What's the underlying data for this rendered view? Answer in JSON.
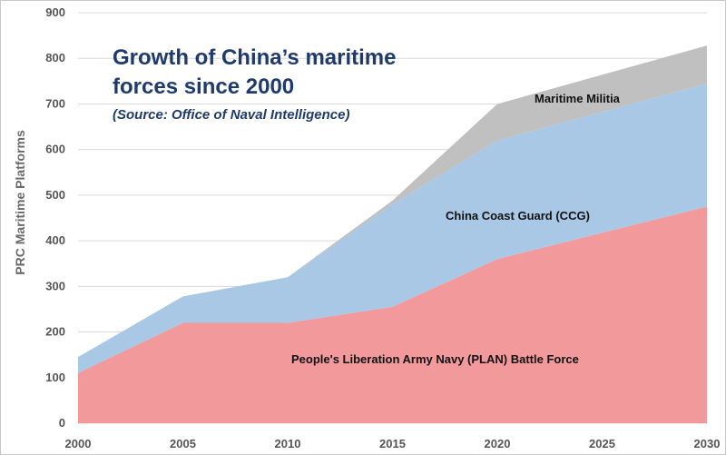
{
  "chart_data": {
    "type": "area",
    "stacked": true,
    "title": "Growth of China’s maritime",
    "title_line2": "forces since 2000",
    "subtitle": "(Source: Office of Naval Intelligence)",
    "xlabel": "",
    "ylabel": "PRC Maritime Platforms",
    "x": [
      2000,
      2005,
      2010,
      2015,
      2020,
      2025,
      2030
    ],
    "x_ticks": [
      "2000",
      "2005",
      "2010",
      "2015",
      "2020",
      "2025",
      "2030"
    ],
    "y_ticks": [
      "0",
      "100",
      "200",
      "300",
      "400",
      "500",
      "600",
      "700",
      "800",
      "900"
    ],
    "xlim": [
      2000,
      2030
    ],
    "ylim": [
      0,
      900
    ],
    "grid": true,
    "legend": "none",
    "series": [
      {
        "name": "People's Liberation Army Navy (PLAN) Battle Force",
        "color": "#f2999c",
        "points": [
          [
            2000,
            110
          ],
          [
            2005,
            220
          ],
          [
            2010,
            220
          ],
          [
            2015,
            255
          ],
          [
            2020,
            360
          ],
          [
            2030,
            475
          ]
        ]
      },
      {
        "name": "China Coast Guard (CCG)",
        "color": "#a9c8e6",
        "points": [
          [
            2000,
            35
          ],
          [
            2005,
            58
          ],
          [
            2010,
            100
          ],
          [
            2015,
            225
          ],
          [
            2020,
            260
          ],
          [
            2030,
            270
          ]
        ]
      },
      {
        "name": "Maritime Militia",
        "color": "#c0c0c0",
        "points": [
          [
            2000,
            0
          ],
          [
            2005,
            0
          ],
          [
            2010,
            0
          ],
          [
            2015,
            8
          ],
          [
            2020,
            80
          ],
          [
            2030,
            83
          ]
        ]
      }
    ],
    "labels": {
      "militia": "Maritime Militia",
      "ccg": "China Coast Guard (CCG)",
      "plan": "People's Liberation Army Navy (PLAN) Battle Force"
    }
  }
}
